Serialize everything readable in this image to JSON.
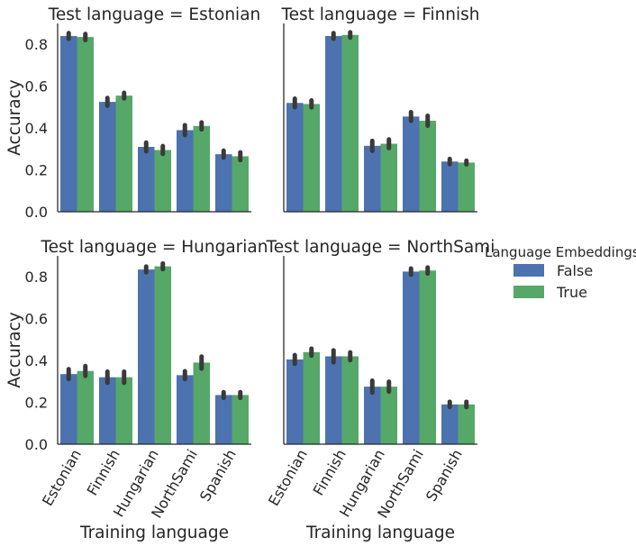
{
  "chart_data": {
    "type": "bar",
    "xlabel": "Training language",
    "ylabel": "Accuracy",
    "ylim": [
      0,
      0.9
    ],
    "yticks": [
      "0.0",
      "0.2",
      "0.4",
      "0.6",
      "0.8"
    ],
    "categories": [
      "Estonian",
      "Finnish",
      "Hungarian",
      "NorthSami",
      "Spanish"
    ],
    "legend": {
      "title": "Language Embeddings",
      "position": "right",
      "entries": [
        {
          "label": "False",
          "color": "#4c72b0"
        },
        {
          "label": "True",
          "color": "#55a868"
        }
      ]
    },
    "panels": [
      {
        "title": "Test language = Estonian",
        "series": [
          {
            "name": "False",
            "values": [
              0.84,
              0.525,
              0.31,
              0.39,
              0.275
            ],
            "err": [
              0.005,
              0.01,
              0.012,
              0.015,
              0.008
            ]
          },
          {
            "name": "True",
            "values": [
              0.835,
              0.555,
              0.295,
              0.41,
              0.265
            ],
            "err": [
              0.006,
              0.005,
              0.01,
              0.008,
              0.01
            ]
          }
        ]
      },
      {
        "title": "Test language = Finnish",
        "series": [
          {
            "name": "False",
            "values": [
              0.52,
              0.84,
              0.315,
              0.455,
              0.24
            ],
            "err": [
              0.012,
              0.005,
              0.015,
              0.012,
              0.004
            ]
          },
          {
            "name": "True",
            "values": [
              0.515,
              0.845,
              0.325,
              0.435,
              0.235
            ],
            "err": [
              0.008,
              0.004,
              0.012,
              0.015,
              0.0
            ]
          }
        ]
      },
      {
        "title": "Test language = Hungarian",
        "series": [
          {
            "name": "False",
            "values": [
              0.335,
              0.32,
              0.835,
              0.33,
              0.235
            ],
            "err": [
              0.015,
              0.018,
              0.005,
              0.01,
              0.005
            ]
          },
          {
            "name": "True",
            "values": [
              0.35,
              0.32,
              0.85,
              0.39,
              0.235
            ],
            "err": [
              0.015,
              0.018,
              0.005,
              0.02,
              0.005
            ]
          }
        ]
      },
      {
        "title": "Test language = NorthSami",
        "series": [
          {
            "name": "False",
            "values": [
              0.405,
              0.42,
              0.275,
              0.825,
              0.19
            ],
            "err": [
              0.012,
              0.02,
              0.02,
              0.006,
              0.004
            ]
          },
          {
            "name": "True",
            "values": [
              0.44,
              0.42,
              0.275,
              0.83,
              0.19
            ],
            "err": [
              0.008,
              0.01,
              0.015,
              0.006,
              0.004
            ]
          }
        ]
      }
    ]
  }
}
